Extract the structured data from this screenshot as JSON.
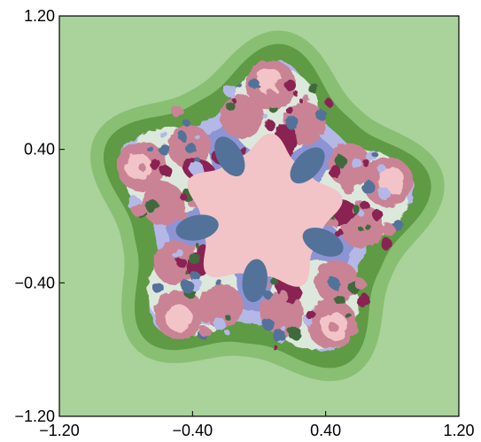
{
  "chart_data": {
    "type": "heatmap",
    "title": "",
    "xlabel": "",
    "ylabel": "",
    "xlim": [
      -1.2,
      1.2
    ],
    "ylim": [
      -1.2,
      1.2
    ],
    "x_ticks": [
      -1.2,
      -0.4,
      0.4,
      1.2
    ],
    "y_ticks": [
      -1.2,
      -0.4,
      0.4,
      1.2
    ],
    "x_tick_labels": [
      "−1.20",
      "−0.40",
      "0.40",
      "1.20"
    ],
    "y_tick_labels": [
      "−1.20",
      "−0.40",
      "0.40",
      "1.20"
    ],
    "grid": false,
    "legend": "none",
    "symmetry": "5-fold rotational fractal (escape-time basins)",
    "colors": {
      "background_outer": "#a9d39b",
      "band_1": "#89bf72",
      "band_2": "#5f9a45",
      "band_3": "#b3b8e6",
      "band_4": "#8d94d4",
      "lobe_dark_blue": "#52729a",
      "interior_pink": "#f2c4c7",
      "petal_magenta": "#8a2453",
      "petal_pink": "#c98395",
      "fractal_light": "#dde8dc",
      "fractal_dark_green": "#3f6a3c",
      "frame": "#000000"
    }
  }
}
